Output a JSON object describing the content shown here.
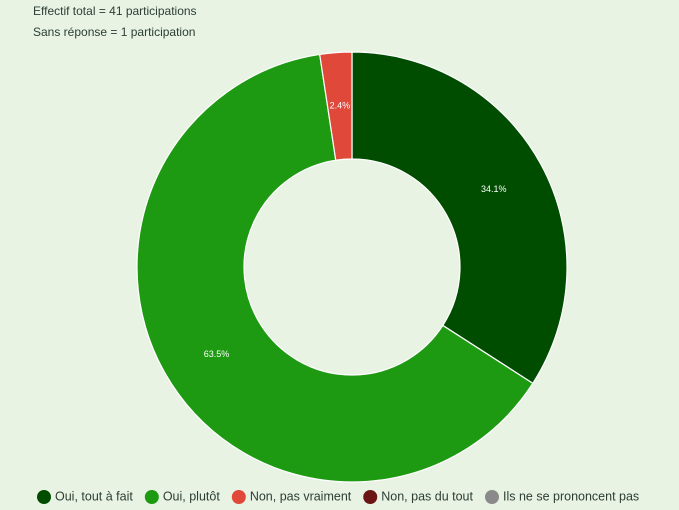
{
  "chart_data": {
    "type": "donut",
    "subtitles": [
      "Effectif total = 41 participations",
      "Sans réponse = 1 participation"
    ],
    "categories": [
      "Oui, tout à fait",
      "Oui, plutôt",
      "Non, pas vraiment",
      "Non, pas du tout",
      "Ils ne se prononcent pas"
    ],
    "values": [
      34.1,
      63.5,
      2.4,
      0,
      0
    ],
    "value_labels": [
      "34.1%",
      "63.5%",
      "2.4%",
      null,
      null
    ],
    "colors": [
      "#004d00",
      "#1e9a12",
      "#e0483a",
      "#6b1515",
      "#8a8a8a"
    ]
  }
}
